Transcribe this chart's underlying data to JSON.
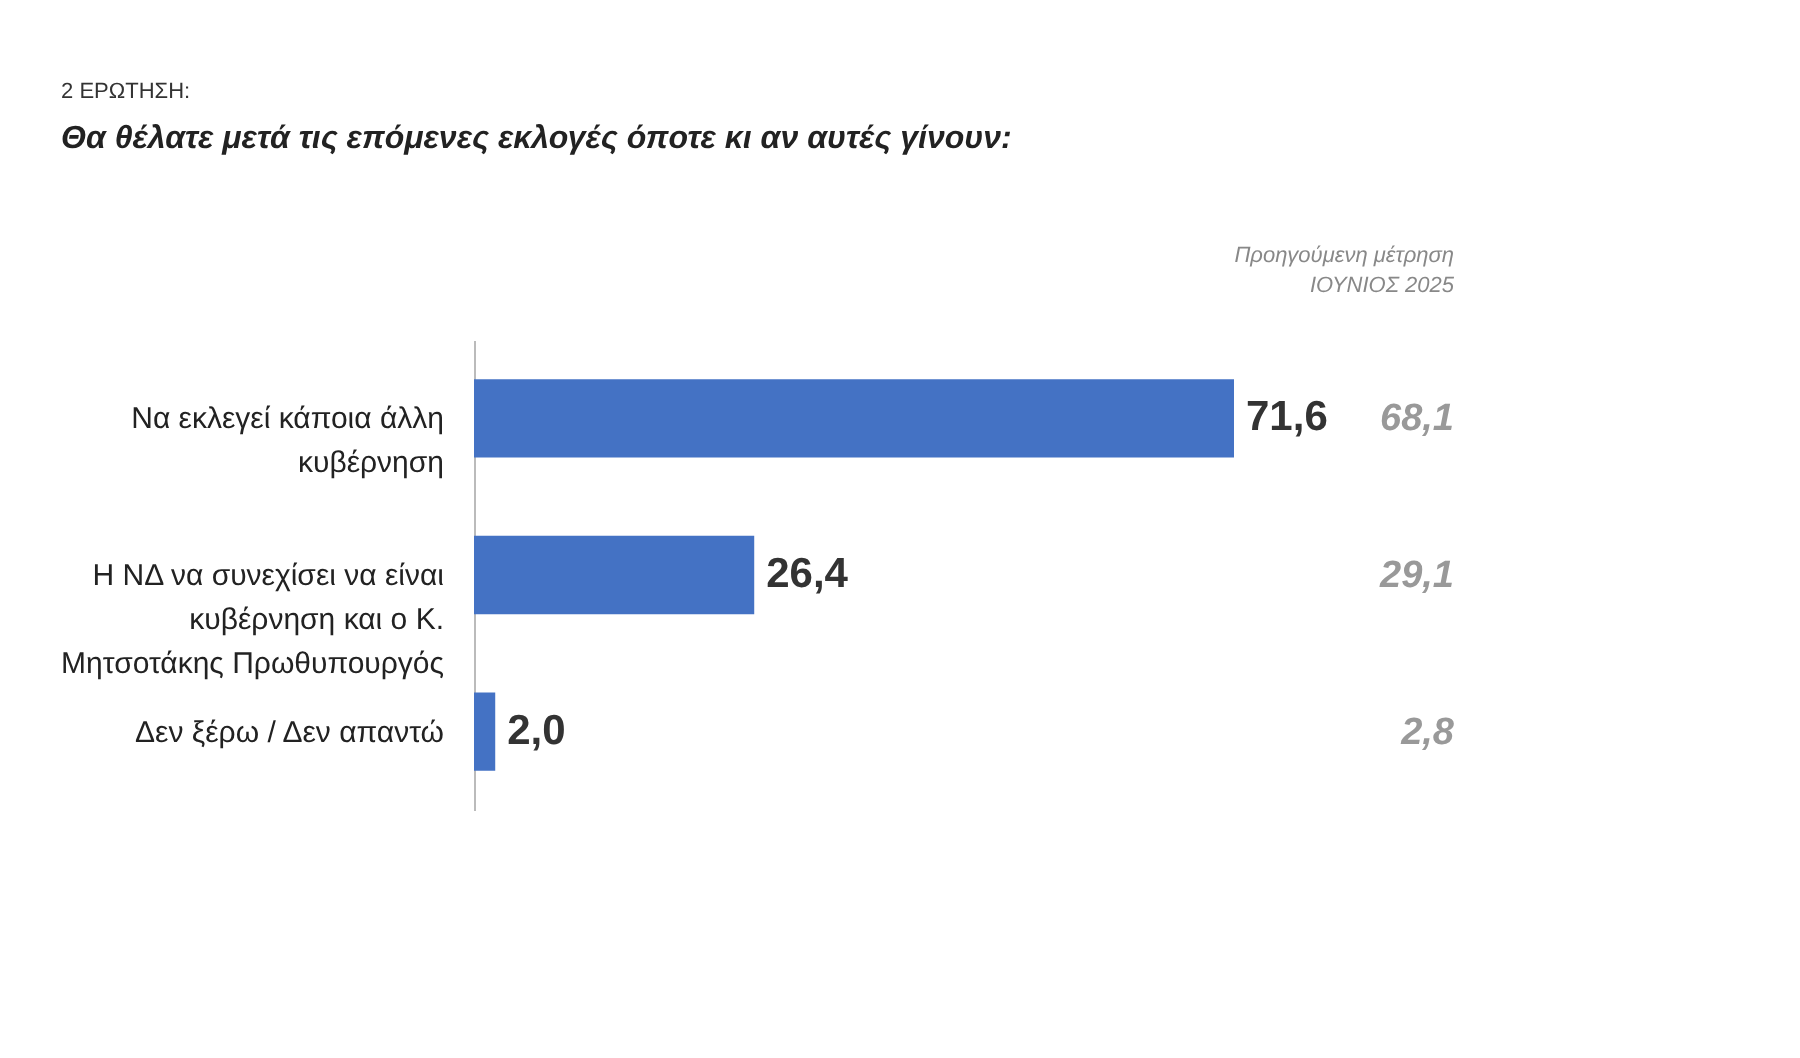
{
  "chart_data": {
    "type": "bar",
    "orientation": "horizontal",
    "title": "2 ΕΡΩΤΗΣΗ:",
    "subtitle": "Θα θέλατε μετά τις επόμενες εκλογές όποτε κι αν αυτές γίνουν:",
    "categories": [
      "Να εκλεγεί κάποια άλλη κυβέρνηση",
      "Η ΝΔ να συνεχίσει να είναι κυβέρνηση και ο Κ. Μητσοτάκης Πρωθυπουργός",
      "Δεν ξέρω / Δεν απαντώ"
    ],
    "values": [
      71.6,
      26.4,
      2.0
    ],
    "value_labels": [
      "71,6",
      "26,4",
      "2,0"
    ],
    "color": "#4472c4",
    "annotations": [
      "Προηγούμενη μέτρηση ΙΟΥΝΙΟΣ 2025",
      "68,1",
      "29,1",
      "2,8"
    ],
    "grid": false
  }
}
